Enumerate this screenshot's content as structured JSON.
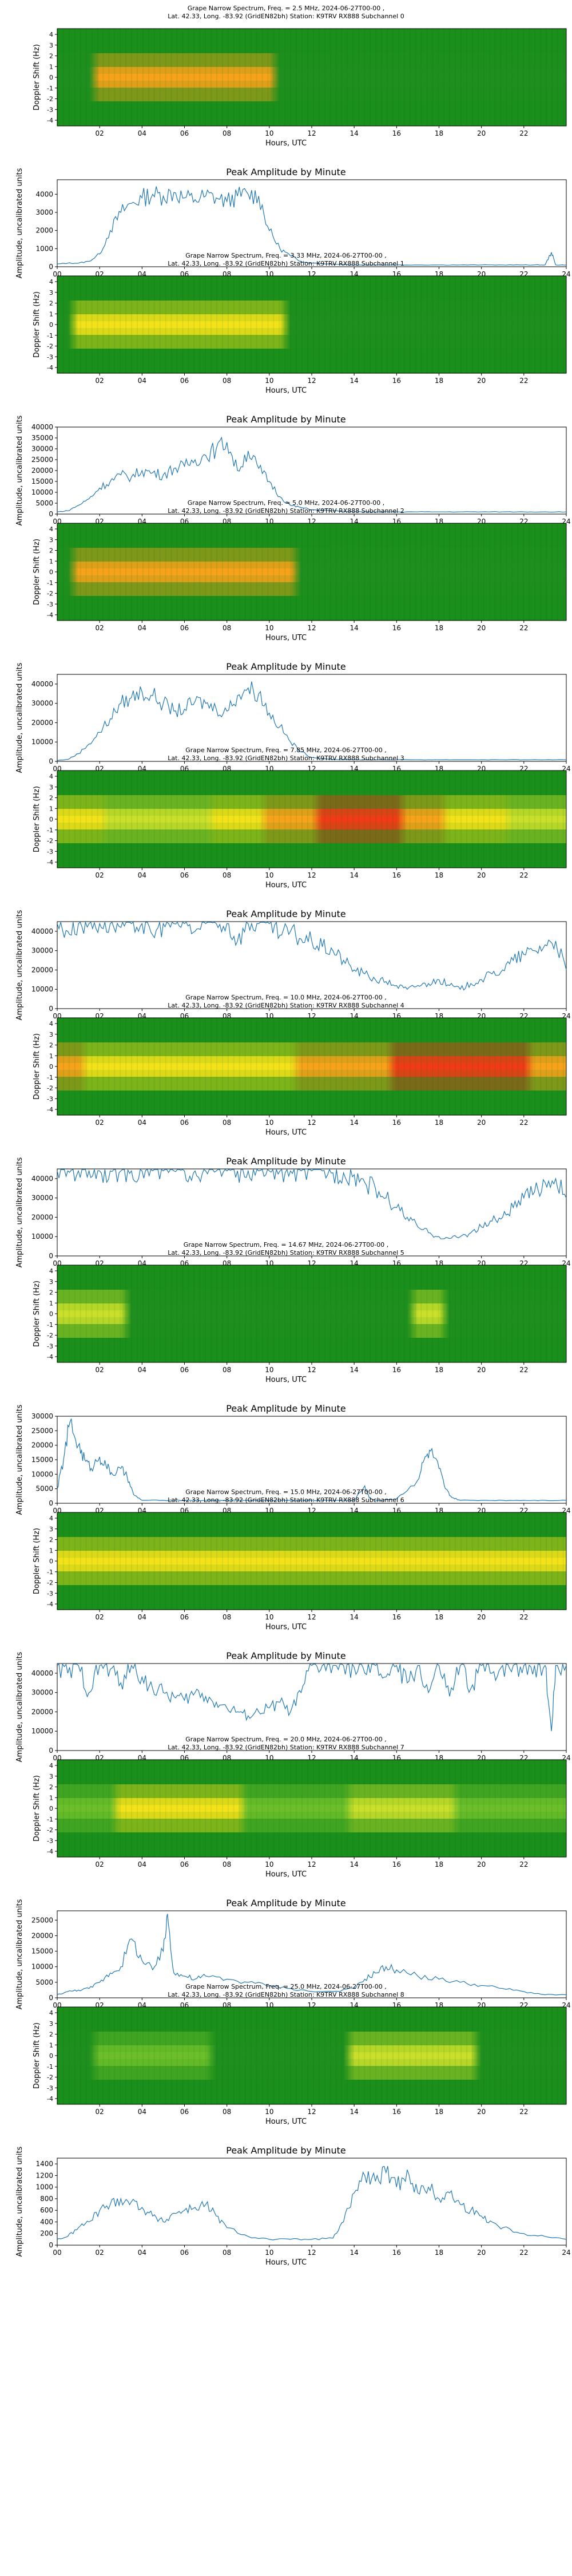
{
  "common": {
    "spec_line2": "Lat.  42.33, Long. -83.92 (GridEN82bh) Station: K9TRV RX888 Subchannel",
    "spec_ylabel": "Doppler Shift (Hz)",
    "xlabel": "Hours, UTC",
    "amp_title": "Peak Amplitude by Minute",
    "amp_ylabel": "Amplitude, uncalibrated units",
    "spec_xticks": [
      "02",
      "04",
      "06",
      "08",
      "10",
      "12",
      "14",
      "16",
      "18",
      "20",
      "22"
    ],
    "spec_yticks": [
      "4",
      "3",
      "2",
      "1",
      "0",
      "-1",
      "-2",
      "-3",
      "-4"
    ],
    "amp_xticks": [
      "00",
      "02",
      "04",
      "06",
      "08",
      "10",
      "12",
      "14",
      "16",
      "18",
      "20",
      "22",
      "24"
    ],
    "colors": {
      "line": "#1f77b4",
      "spec_bg": "#1b8f1b"
    }
  },
  "chart_data": [
    {
      "type": "heatmap",
      "title": "Grape Narrow Spectrum, Freq. = 2.5 MHz, 2024-06-27T00-00 ,",
      "subchannel": "0",
      "xlim": [
        0,
        24
      ],
      "ylim": [
        -4.5,
        4.5
      ]
    },
    {
      "type": "line",
      "title": "Peak Amplitude by Minute",
      "ylim": [
        0,
        4800
      ],
      "yticks": [
        "0",
        "1000",
        "2000",
        "3000",
        "4000"
      ],
      "xlim": [
        0,
        24
      ],
      "x": [
        0,
        0.5,
        1,
        1.5,
        2,
        2.5,
        3,
        3.5,
        4,
        4.5,
        5,
        5.5,
        6,
        6.5,
        7,
        7.5,
        8,
        8.5,
        9,
        9.5,
        10,
        10.5,
        11,
        11.5,
        12,
        13,
        14,
        15,
        16,
        17,
        18,
        19,
        20,
        21,
        22,
        22.5,
        23,
        23.3,
        23.5,
        24
      ],
      "y": [
        150,
        200,
        200,
        300,
        700,
        2000,
        3000,
        3500,
        3800,
        4000,
        3900,
        4100,
        3800,
        3700,
        3900,
        3800,
        3600,
        3900,
        4000,
        3900,
        2000,
        1000,
        600,
        300,
        200,
        150,
        100,
        100,
        100,
        100,
        100,
        100,
        100,
        100,
        100,
        100,
        100,
        800,
        100,
        100
      ]
    },
    {
      "type": "heatmap",
      "title": "Grape Narrow Spectrum, Freq. = 3.33 MHz, 2024-06-27T00-00 ,",
      "subchannel": "1",
      "xlim": [
        0,
        24
      ],
      "ylim": [
        -4.5,
        4.5
      ]
    },
    {
      "type": "line",
      "title": "Peak Amplitude by Minute",
      "ylim": [
        0,
        40000
      ],
      "yticks": [
        "0",
        "5000",
        "10000",
        "15000",
        "20000",
        "25000",
        "30000",
        "35000",
        "40000"
      ],
      "xlim": [
        0,
        24
      ],
      "x": [
        0,
        0.5,
        1,
        1.5,
        2,
        2.5,
        3,
        3.5,
        4,
        4.5,
        5,
        5.5,
        6,
        6.5,
        7,
        7.5,
        8,
        8.5,
        9,
        9.5,
        10,
        10.5,
        11,
        11.5,
        12,
        13,
        14,
        15,
        16,
        17,
        18,
        19,
        20,
        21,
        22,
        23,
        24
      ],
      "y": [
        1000,
        1500,
        4000,
        7000,
        12000,
        15000,
        18000,
        17000,
        20000,
        19000,
        18000,
        21000,
        22000,
        25000,
        27000,
        30000,
        33000,
        20000,
        29000,
        21000,
        15000,
        8000,
        4000,
        3000,
        2000,
        1500,
        1000,
        1000,
        1000,
        1000,
        1000,
        1000,
        1000,
        1000,
        1000,
        1000,
        1000
      ]
    },
    {
      "type": "heatmap",
      "title": "Grape Narrow Spectrum, Freq. = 5.0 MHz, 2024-06-27T00-00 ,",
      "subchannel": "2",
      "xlim": [
        0,
        24
      ],
      "ylim": [
        -4.5,
        4.5
      ]
    },
    {
      "type": "line",
      "title": "Peak Amplitude by Minute",
      "ylim": [
        0,
        45000
      ],
      "yticks": [
        "0",
        "10000",
        "20000",
        "30000",
        "40000"
      ],
      "xlim": [
        0,
        24
      ],
      "x": [
        0,
        0.5,
        1,
        1.5,
        2,
        2.5,
        3,
        3.5,
        4,
        4.5,
        5,
        5.5,
        6,
        6.5,
        7,
        7.5,
        8,
        8.5,
        9,
        9.5,
        10,
        10.5,
        11,
        11.5,
        12,
        13,
        14,
        15,
        16,
        17,
        18,
        19,
        20,
        21,
        22,
        23,
        24
      ],
      "y": [
        500,
        1000,
        4000,
        9000,
        15000,
        22000,
        30000,
        33000,
        36000,
        34000,
        30000,
        26000,
        27000,
        31000,
        30000,
        27000,
        26000,
        34000,
        38000,
        35000,
        25000,
        18000,
        10000,
        5000,
        2000,
        1000,
        800,
        800,
        800,
        800,
        800,
        800,
        800,
        800,
        800,
        800,
        800
      ]
    },
    {
      "type": "heatmap",
      "title": "Grape Narrow Spectrum, Freq. = 7.85 MHz, 2024-06-27T00-00 ,",
      "subchannel": "3",
      "xlim": [
        0,
        24
      ],
      "ylim": [
        -4.5,
        4.5
      ]
    },
    {
      "type": "line",
      "title": "Peak Amplitude by Minute",
      "ylim": [
        0,
        45000
      ],
      "yticks": [
        "0",
        "10000",
        "20000",
        "30000",
        "40000"
      ],
      "xlim": [
        0,
        24
      ],
      "x": [
        0,
        0.5,
        1,
        1.5,
        2,
        2.5,
        3,
        3.5,
        4,
        4.5,
        5,
        5.5,
        6,
        6.5,
        7,
        7.5,
        8,
        8.5,
        9,
        9.5,
        10,
        10.5,
        11,
        11.5,
        12,
        12.5,
        13,
        13.5,
        14,
        14.5,
        15,
        15.5,
        16,
        16.5,
        17,
        17.5,
        18,
        18.5,
        19,
        19.5,
        20,
        20.5,
        21,
        21.5,
        22,
        22.5,
        23,
        23.5,
        24
      ],
      "y": [
        44000,
        40000,
        44000,
        44000,
        44000,
        44000,
        42000,
        44000,
        44000,
        38000,
        44000,
        44000,
        44000,
        40000,
        44000,
        44000,
        44000,
        35000,
        44000,
        44000,
        44000,
        38000,
        40000,
        36000,
        35000,
        32000,
        30000,
        25000,
        20000,
        18000,
        15000,
        14000,
        12000,
        10000,
        12000,
        13000,
        15000,
        12000,
        10000,
        13000,
        15000,
        18000,
        20000,
        25000,
        28000,
        30000,
        33000,
        35000,
        20000
      ]
    },
    {
      "type": "heatmap",
      "title": "Grape Narrow Spectrum, Freq. = 10.0 MHz, 2024-06-27T00-00 ,",
      "subchannel": "4",
      "xlim": [
        0,
        24
      ],
      "ylim": [
        -4.5,
        4.5
      ]
    },
    {
      "type": "line",
      "title": "Peak Amplitude by Minute",
      "ylim": [
        0,
        45000
      ],
      "yticks": [
        "0",
        "10000",
        "20000",
        "30000",
        "40000"
      ],
      "xlim": [
        0,
        24
      ],
      "x": [
        0,
        0.5,
        1,
        1.5,
        2,
        2.5,
        3,
        3.5,
        4,
        4.5,
        5,
        5.5,
        6,
        6.5,
        7,
        7.5,
        8,
        8.5,
        9,
        9.5,
        10,
        10.5,
        11,
        11.5,
        12,
        12.5,
        13,
        13.5,
        14,
        14.5,
        15,
        15.5,
        16,
        16.5,
        17,
        17.5,
        18,
        18.5,
        19,
        19.5,
        20,
        20.5,
        21,
        21.5,
        22,
        22.5,
        23,
        23.5,
        24
      ],
      "y": [
        44000,
        44000,
        44000,
        44000,
        44000,
        44000,
        44000,
        44000,
        44000,
        44000,
        44000,
        44000,
        44000,
        44000,
        44000,
        44000,
        44000,
        44000,
        44000,
        44000,
        44000,
        44000,
        44000,
        44000,
        44000,
        44000,
        43000,
        43000,
        42000,
        38000,
        35000,
        30000,
        25000,
        20000,
        15000,
        12000,
        10000,
        9000,
        10000,
        12000,
        15000,
        18000,
        20000,
        25000,
        30000,
        33000,
        38000,
        40000,
        30000
      ]
    },
    {
      "type": "heatmap",
      "title": "Grape Narrow Spectrum, Freq. = 14.67 MHz, 2024-06-27T00-00 ,",
      "subchannel": "5",
      "xlim": [
        0,
        24
      ],
      "ylim": [
        -4.5,
        4.5
      ]
    },
    {
      "type": "line",
      "title": "Peak Amplitude by Minute",
      "ylim": [
        0,
        30000
      ],
      "yticks": [
        "0",
        "5000",
        "10000",
        "15000",
        "20000",
        "25000",
        "30000"
      ],
      "xlim": [
        0,
        24
      ],
      "x": [
        0,
        0.3,
        0.6,
        1,
        1.3,
        1.6,
        2,
        2.3,
        2.6,
        3,
        3.3,
        3.6,
        4,
        5,
        6,
        7,
        8,
        9,
        10,
        11,
        12,
        13,
        14,
        14.5,
        14.7,
        15,
        16,
        17,
        17.3,
        17.6,
        18,
        18.3,
        18.6,
        19,
        20,
        21,
        22,
        23,
        24
      ],
      "y": [
        5000,
        15000,
        28000,
        20000,
        15000,
        12000,
        16000,
        13000,
        10000,
        12000,
        9000,
        3000,
        1000,
        1000,
        1000,
        1000,
        1000,
        1000,
        1000,
        1000,
        1000,
        1000,
        1000,
        6000,
        2000,
        1000,
        1500,
        8000,
        15000,
        18000,
        12000,
        5000,
        2000,
        1000,
        1000,
        1000,
        1000,
        1000,
        1000
      ]
    },
    {
      "type": "heatmap",
      "title": "Grape Narrow Spectrum, Freq. = 15.0 MHz, 2024-06-27T00-00 ,",
      "subchannel": "6",
      "xlim": [
        0,
        24
      ],
      "ylim": [
        -4.5,
        4.5
      ]
    },
    {
      "type": "line",
      "title": "Peak Amplitude by Minute",
      "ylim": [
        0,
        45000
      ],
      "yticks": [
        "0",
        "10000",
        "20000",
        "30000",
        "40000"
      ],
      "xlim": [
        0,
        24
      ],
      "x": [
        0,
        0.5,
        1,
        1.5,
        2,
        2.5,
        3,
        3.5,
        4,
        4.5,
        5,
        5.5,
        6,
        6.5,
        7,
        7.5,
        8,
        8.5,
        9,
        9.5,
        10,
        10.5,
        11,
        11.5,
        12,
        12.5,
        13,
        13.5,
        14,
        14.5,
        15,
        15.5,
        16,
        16.5,
        17,
        17.5,
        18,
        18.5,
        19,
        19.5,
        20,
        20.5,
        21,
        21.5,
        22,
        22.5,
        23,
        23.3,
        23.5,
        24
      ],
      "y": [
        44000,
        40000,
        44000,
        30000,
        44000,
        42000,
        35000,
        44000,
        38000,
        32000,
        30000,
        28000,
        26000,
        30000,
        28000,
        25000,
        22000,
        20000,
        18000,
        20000,
        22000,
        25000,
        20000,
        30000,
        44000,
        44000,
        44000,
        44000,
        43000,
        40000,
        44000,
        38000,
        44000,
        35000,
        44000,
        30000,
        44000,
        28000,
        44000,
        32000,
        44000,
        40000,
        44000,
        44000,
        44000,
        44000,
        44000,
        10000,
        44000,
        44000
      ]
    },
    {
      "type": "heatmap",
      "title": "Grape Narrow Spectrum, Freq. = 20.0 MHz, 2024-06-27T00-00 ,",
      "subchannel": "7",
      "xlim": [
        0,
        24
      ],
      "ylim": [
        -4.5,
        4.5
      ]
    },
    {
      "type": "line",
      "title": "Peak Amplitude by Minute",
      "ylim": [
        0,
        28000
      ],
      "yticks": [
        "0",
        "5000",
        "10000",
        "15000",
        "20000",
        "25000"
      ],
      "xlim": [
        0,
        24
      ],
      "x": [
        0,
        0.5,
        1,
        1.5,
        2,
        2.5,
        3,
        3.5,
        4,
        4.5,
        5,
        5.2,
        5.5,
        6,
        6.5,
        7,
        8,
        9,
        10,
        11,
        12,
        13,
        14,
        14.5,
        15,
        15.5,
        16,
        17,
        18,
        19,
        20,
        21,
        22,
        23,
        24
      ],
      "y": [
        1000,
        2000,
        2500,
        3000,
        5000,
        8000,
        10000,
        19000,
        12000,
        9000,
        15000,
        27000,
        8000,
        7000,
        6000,
        7000,
        6000,
        5000,
        4000,
        3000,
        2000,
        2000,
        3000,
        6000,
        8000,
        10000,
        9000,
        7000,
        6000,
        5000,
        4000,
        3000,
        2000,
        1000,
        1000
      ]
    },
    {
      "type": "heatmap",
      "title": "Grape Narrow Spectrum, Freq. = 25.0 MHz, 2024-06-27T00-00 ,",
      "subchannel": "8",
      "xlim": [
        0,
        24
      ],
      "ylim": [
        -4.5,
        4.5
      ]
    },
    {
      "type": "line",
      "title": "Peak Amplitude by Minute",
      "ylim": [
        0,
        1500
      ],
      "yticks": [
        "0",
        "200",
        "400",
        "600",
        "800",
        "1000",
        "1200",
        "1400"
      ],
      "xlim": [
        0,
        24
      ],
      "x": [
        0,
        0.5,
        1,
        1.5,
        2,
        2.5,
        3,
        3.5,
        4,
        4.5,
        5,
        5.5,
        6,
        6.5,
        7,
        7.5,
        8,
        9,
        10,
        11,
        12,
        13,
        13.5,
        14,
        14.5,
        15,
        15.5,
        16,
        16.5,
        17,
        17.5,
        18,
        18.5,
        19,
        19.5,
        20,
        20.5,
        21,
        22,
        23,
        24
      ],
      "y": [
        100,
        150,
        300,
        400,
        600,
        700,
        800,
        750,
        650,
        500,
        400,
        550,
        600,
        650,
        700,
        500,
        300,
        150,
        100,
        100,
        100,
        120,
        400,
        900,
        1200,
        1100,
        1250,
        1000,
        1300,
        900,
        1000,
        800,
        900,
        700,
        600,
        500,
        400,
        300,
        200,
        150,
        100
      ]
    }
  ]
}
